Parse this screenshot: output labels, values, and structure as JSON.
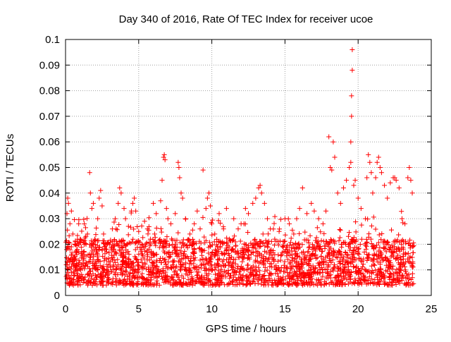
{
  "chart_data": {
    "type": "scatter",
    "title": "Day 340 of 2016, Rate Of TEC Index for receiver ucoe",
    "xlabel": "GPS time / hours",
    "ylabel": "ROTI / TECUs",
    "xlim": [
      0,
      25
    ],
    "ylim": [
      0,
      0.1
    ],
    "x_ticks": [
      0,
      5,
      10,
      15,
      20,
      25
    ],
    "x_tick_labels": [
      "0",
      "5",
      "10",
      "15",
      "20",
      "25"
    ],
    "y_ticks": [
      0,
      0.01,
      0.02,
      0.03,
      0.04,
      0.05,
      0.06,
      0.07,
      0.08,
      0.09,
      0.1
    ],
    "y_tick_labels": [
      "0",
      "0.01",
      "0.02",
      "0.03",
      "0.04",
      "0.05",
      "0.06",
      "0.07",
      "0.08",
      "0.09",
      "0.1"
    ],
    "grid": true,
    "marker": "+",
    "colors": {
      "series": "#ff0000",
      "grid": "#a0a0a0",
      "axis": "#000000"
    },
    "series": [
      {
        "points": [
          [
            0.05,
            0.012
          ],
          [
            0.1,
            0.032
          ],
          [
            0.15,
            0.038
          ],
          [
            0.2,
            0.036
          ],
          [
            0.3,
            0.028
          ],
          [
            0.4,
            0.033
          ],
          [
            0.5,
            0.024
          ],
          [
            0.6,
            0.015
          ],
          [
            0.8,
            0.018
          ],
          [
            0.9,
            0.028
          ],
          [
            1.0,
            0.022
          ],
          [
            1.2,
            0.016
          ],
          [
            1.4,
            0.02
          ],
          [
            1.5,
            0.024
          ],
          [
            1.65,
            0.048
          ],
          [
            1.7,
            0.04
          ],
          [
            1.8,
            0.034
          ],
          [
            1.9,
            0.036
          ],
          [
            2.0,
            0.022
          ],
          [
            2.2,
            0.03
          ],
          [
            2.3,
            0.038
          ],
          [
            2.4,
            0.041
          ],
          [
            2.5,
            0.035
          ],
          [
            2.6,
            0.024
          ],
          [
            2.8,
            0.018
          ],
          [
            3.0,
            0.02
          ],
          [
            3.2,
            0.026
          ],
          [
            3.4,
            0.03
          ],
          [
            3.6,
            0.036
          ],
          [
            3.7,
            0.042
          ],
          [
            3.8,
            0.04
          ],
          [
            4.0,
            0.034
          ],
          [
            4.1,
            0.03
          ],
          [
            4.3,
            0.027
          ],
          [
            4.5,
            0.033
          ],
          [
            4.6,
            0.036
          ],
          [
            4.7,
            0.038
          ],
          [
            4.8,
            0.033
          ],
          [
            5.0,
            0.025
          ],
          [
            5.2,
            0.02
          ],
          [
            5.4,
            0.029
          ],
          [
            5.6,
            0.026
          ],
          [
            5.8,
            0.022
          ],
          [
            6.0,
            0.036
          ],
          [
            6.2,
            0.032
          ],
          [
            6.5,
            0.037
          ],
          [
            6.6,
            0.045
          ],
          [
            6.7,
            0.054
          ],
          [
            6.75,
            0.055
          ],
          [
            6.8,
            0.053
          ],
          [
            6.9,
            0.034
          ],
          [
            7.0,
            0.03
          ],
          [
            7.2,
            0.028
          ],
          [
            7.5,
            0.032
          ],
          [
            7.7,
            0.052
          ],
          [
            7.75,
            0.05
          ],
          [
            7.8,
            0.046
          ],
          [
            7.9,
            0.04
          ],
          [
            8.0,
            0.038
          ],
          [
            8.2,
            0.03
          ],
          [
            8.5,
            0.024
          ],
          [
            8.8,
            0.028
          ],
          [
            9.0,
            0.033
          ],
          [
            9.2,
            0.026
          ],
          [
            9.4,
            0.049
          ],
          [
            9.6,
            0.034
          ],
          [
            9.7,
            0.038
          ],
          [
            9.8,
            0.04
          ],
          [
            9.9,
            0.035
          ],
          [
            10.0,
            0.028
          ],
          [
            10.2,
            0.024
          ],
          [
            10.5,
            0.032
          ],
          [
            10.8,
            0.026
          ],
          [
            11.0,
            0.034
          ],
          [
            11.2,
            0.022
          ],
          [
            11.5,
            0.03
          ],
          [
            11.8,
            0.026
          ],
          [
            12.0,
            0.028
          ],
          [
            12.3,
            0.034
          ],
          [
            12.5,
            0.032
          ],
          [
            12.8,
            0.036
          ],
          [
            13.0,
            0.038
          ],
          [
            13.2,
            0.042
          ],
          [
            13.3,
            0.043
          ],
          [
            13.4,
            0.04
          ],
          [
            13.6,
            0.036
          ],
          [
            13.8,
            0.03
          ],
          [
            14.0,
            0.026
          ],
          [
            14.3,
            0.022
          ],
          [
            14.6,
            0.025
          ],
          [
            15.0,
            0.03
          ],
          [
            15.3,
            0.028
          ],
          [
            15.6,
            0.024
          ],
          [
            15.8,
            0.03
          ],
          [
            16.0,
            0.034
          ],
          [
            16.2,
            0.042
          ],
          [
            16.5,
            0.032
          ],
          [
            16.8,
            0.036
          ],
          [
            17.0,
            0.033
          ],
          [
            17.3,
            0.03
          ],
          [
            17.6,
            0.028
          ],
          [
            17.8,
            0.033
          ],
          [
            18.0,
            0.062
          ],
          [
            18.1,
            0.05
          ],
          [
            18.2,
            0.049
          ],
          [
            18.3,
            0.06
          ],
          [
            18.4,
            0.054
          ],
          [
            18.6,
            0.04
          ],
          [
            18.8,
            0.036
          ],
          [
            19.0,
            0.042
          ],
          [
            19.2,
            0.045
          ],
          [
            19.4,
            0.05
          ],
          [
            19.5,
            0.052
          ],
          [
            19.5,
            0.06
          ],
          [
            19.55,
            0.07
          ],
          [
            19.55,
            0.078
          ],
          [
            19.6,
            0.088
          ],
          [
            19.6,
            0.096
          ],
          [
            19.7,
            0.043
          ],
          [
            19.8,
            0.045
          ],
          [
            20.0,
            0.038
          ],
          [
            20.2,
            0.034
          ],
          [
            20.5,
            0.03
          ],
          [
            20.6,
            0.046
          ],
          [
            20.7,
            0.055
          ],
          [
            20.8,
            0.052
          ],
          [
            20.9,
            0.048
          ],
          [
            21.0,
            0.04
          ],
          [
            21.2,
            0.046
          ],
          [
            21.3,
            0.052
          ],
          [
            21.4,
            0.054
          ],
          [
            21.5,
            0.05
          ],
          [
            21.6,
            0.048
          ],
          [
            21.8,
            0.043
          ],
          [
            22.0,
            0.038
          ],
          [
            22.2,
            0.044
          ],
          [
            22.4,
            0.046
          ],
          [
            22.5,
            0.046
          ],
          [
            22.6,
            0.045
          ],
          [
            22.8,
            0.042
          ],
          [
            23.0,
            0.03
          ],
          [
            23.2,
            0.028
          ],
          [
            23.4,
            0.046
          ],
          [
            23.5,
            0.05
          ],
          [
            23.6,
            0.045
          ],
          [
            23.7,
            0.04
          ]
        ],
        "dense_band": {
          "x_range": [
            0,
            23.8
          ],
          "y_range": [
            0.004,
            0.022
          ],
          "note_hours_active": [
            0,
            23.8
          ]
        }
      }
    ]
  }
}
